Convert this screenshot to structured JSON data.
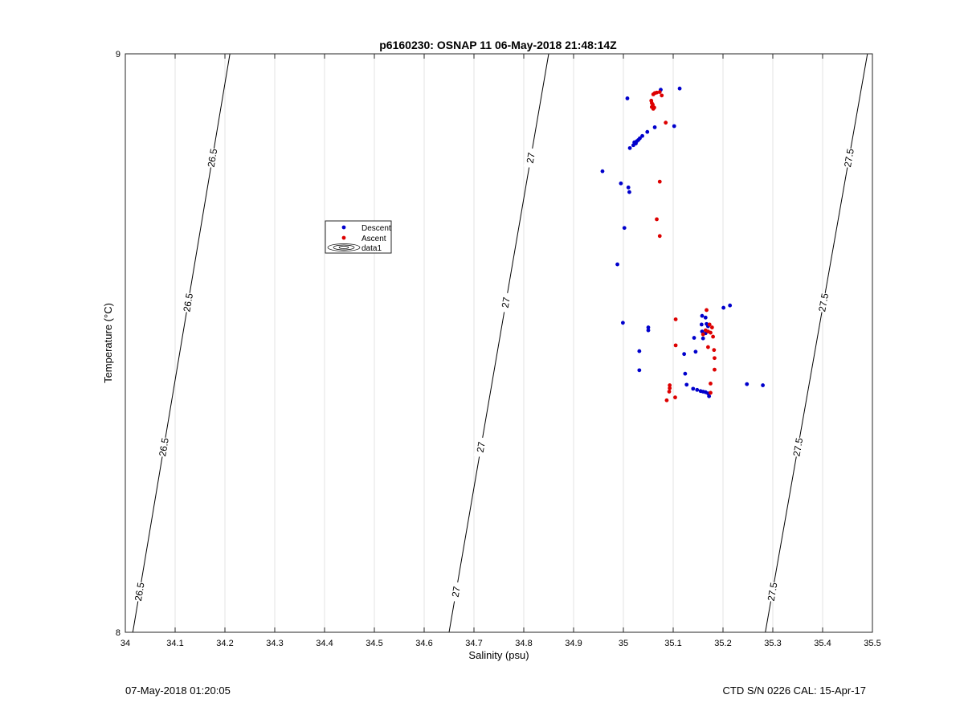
{
  "footer": {
    "timestamp": "07-May-2018 01:20:05",
    "ctd_info": "CTD S/N 0226  CAL: 15-Apr-17"
  },
  "colors": {
    "descent": "#0000cc",
    "ascent": "#dd0000",
    "contour": "#000000",
    "grid": "#e3e3e3"
  },
  "chart_data": {
    "type": "scatter",
    "title": "p6160230: OSNAP 11 06-May-2018 21:48:14Z",
    "xlabel": "Salinity (psu)",
    "ylabel": "Temperature (°C)",
    "xlim": [
      34,
      35.5
    ],
    "ylim": [
      8,
      9
    ],
    "x_ticks": [
      "34",
      "34.1",
      "34.2",
      "34.3",
      "34.4",
      "34.5",
      "34.6",
      "34.7",
      "34.8",
      "34.9",
      "35",
      "35.1",
      "35.2",
      "35.3",
      "35.4",
      "35.5"
    ],
    "y_ticks": [
      "8",
      "9"
    ],
    "grid": "vertical",
    "legend": {
      "placement": "upper-left",
      "entries": [
        "Descent",
        "Ascent",
        "data1"
      ]
    },
    "contours": [
      {
        "label": "26.5",
        "points": [
          [
            34.015,
            8.0
          ],
          [
            34.21,
            9.0
          ]
        ],
        "label_positions": [
          8.07,
          8.32,
          8.57,
          8.82
        ]
      },
      {
        "label": "27",
        "points": [
          [
            34.65,
            8.0
          ],
          [
            34.85,
            9.0
          ]
        ],
        "label_positions": [
          8.07,
          8.32,
          8.57,
          8.82
        ]
      },
      {
        "label": "27.5",
        "points": [
          [
            35.285,
            8.0
          ],
          [
            35.49,
            9.0
          ]
        ],
        "label_positions": [
          8.07,
          8.32,
          8.57,
          8.82
        ]
      }
    ],
    "series": [
      {
        "name": "Descent",
        "points": [
          [
            35.075,
            8.938
          ],
          [
            35.113,
            8.94
          ],
          [
            35.008,
            8.923
          ],
          [
            35.102,
            8.875
          ],
          [
            35.063,
            8.873
          ],
          [
            35.048,
            8.865
          ],
          [
            35.038,
            8.858
          ],
          [
            35.033,
            8.854
          ],
          [
            35.03,
            8.851
          ],
          [
            35.027,
            8.849
          ],
          [
            35.022,
            8.847
          ],
          [
            35.025,
            8.845
          ],
          [
            35.02,
            8.842
          ],
          [
            35.013,
            8.837
          ],
          [
            34.958,
            8.797
          ],
          [
            34.995,
            8.776
          ],
          [
            35.01,
            8.769
          ],
          [
            35.012,
            8.761
          ],
          [
            35.002,
            8.699
          ],
          [
            34.988,
            8.636
          ],
          [
            35.214,
            8.565
          ],
          [
            35.201,
            8.561
          ],
          [
            35.158,
            8.547
          ],
          [
            35.165,
            8.544
          ],
          [
            34.999,
            8.535
          ],
          [
            35.167,
            8.533
          ],
          [
            35.157,
            8.532
          ],
          [
            35.17,
            8.529
          ],
          [
            35.05,
            8.527
          ],
          [
            35.05,
            8.522
          ],
          [
            35.158,
            8.52
          ],
          [
            35.165,
            8.517
          ],
          [
            35.142,
            8.509
          ],
          [
            35.16,
            8.508
          ],
          [
            35.032,
            8.486
          ],
          [
            35.145,
            8.485
          ],
          [
            35.122,
            8.481
          ],
          [
            35.032,
            8.453
          ],
          [
            35.124,
            8.447
          ],
          [
            35.248,
            8.429
          ],
          [
            35.28,
            8.427
          ],
          [
            35.127,
            8.428
          ],
          [
            35.14,
            8.421
          ],
          [
            35.148,
            8.419
          ],
          [
            35.155,
            8.417
          ],
          [
            35.16,
            8.416
          ],
          [
            35.165,
            8.415
          ],
          [
            35.17,
            8.413
          ],
          [
            35.172,
            8.408
          ]
        ]
      },
      {
        "name": "Ascent",
        "points": [
          [
            35.073,
            8.934
          ],
          [
            35.067,
            8.933
          ],
          [
            35.063,
            8.932
          ],
          [
            35.06,
            8.93
          ],
          [
            35.077,
            8.928
          ],
          [
            35.056,
            8.919
          ],
          [
            35.057,
            8.915
          ],
          [
            35.059,
            8.912
          ],
          [
            35.057,
            8.908
          ],
          [
            35.06,
            8.905
          ],
          [
            35.062,
            8.907
          ],
          [
            35.085,
            8.881
          ],
          [
            35.073,
            8.779
          ],
          [
            35.067,
            8.714
          ],
          [
            35.073,
            8.685
          ],
          [
            35.167,
            8.557
          ],
          [
            35.105,
            8.541
          ],
          [
            35.173,
            8.532
          ],
          [
            35.178,
            8.527
          ],
          [
            35.165,
            8.522
          ],
          [
            35.17,
            8.52
          ],
          [
            35.175,
            8.518
          ],
          [
            35.16,
            8.515
          ],
          [
            35.18,
            8.511
          ],
          [
            35.105,
            8.496
          ],
          [
            35.17,
            8.493
          ],
          [
            35.182,
            8.488
          ],
          [
            35.183,
            8.474
          ],
          [
            35.183,
            8.454
          ],
          [
            35.175,
            8.43
          ],
          [
            35.093,
            8.427
          ],
          [
            35.093,
            8.422
          ],
          [
            35.092,
            8.416
          ],
          [
            35.175,
            8.414
          ],
          [
            35.104,
            8.406
          ],
          [
            35.087,
            8.401
          ]
        ]
      }
    ]
  }
}
